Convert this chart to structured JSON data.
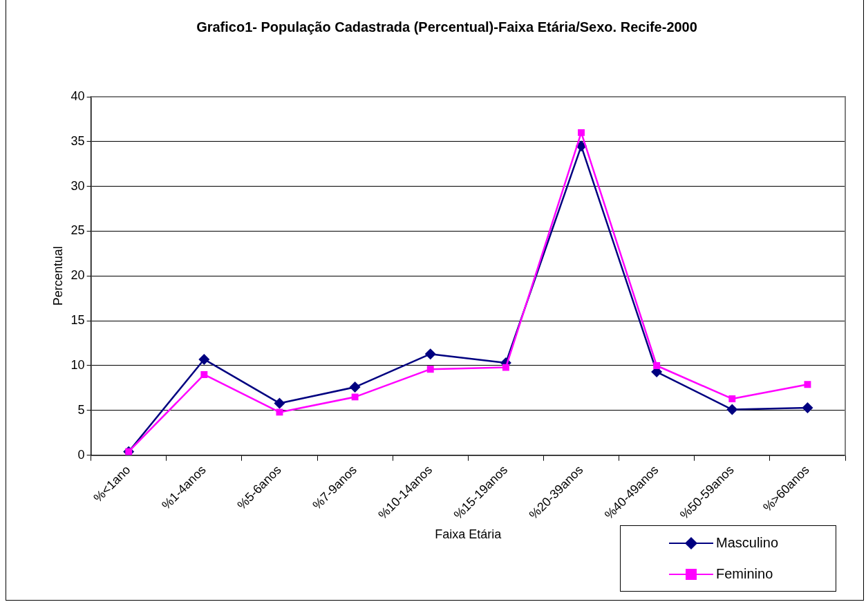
{
  "chart_data": {
    "type": "line",
    "title": "Grafico1- População Cadastrada (Percentual)-Faixa Etária/Sexo. Recife-2000",
    "xlabel": "Faixa Etária",
    "ylabel": "Percentual",
    "categories": [
      "%<1ano",
      "%1-4anos",
      "%5-6anos",
      "%7-9anos",
      "%10-14anos",
      "%15-19anos",
      "%20-39anos",
      "%40-49anos",
      "%50-59anos",
      "%>60anos"
    ],
    "series": [
      {
        "name": "Masculino",
        "color": "#000080",
        "marker": "diamond",
        "values": [
          0.4,
          10.7,
          5.8,
          7.6,
          11.3,
          10.3,
          34.5,
          9.3,
          5.1,
          5.3
        ]
      },
      {
        "name": "Feminino",
        "color": "#ff00ff",
        "marker": "square",
        "values": [
          0.4,
          9.0,
          4.8,
          6.5,
          9.6,
          9.8,
          36.0,
          10.0,
          6.3,
          7.9
        ]
      }
    ],
    "ylim": [
      0,
      40
    ],
    "yticks": [
      0,
      5,
      10,
      15,
      20,
      25,
      30,
      35,
      40
    ],
    "grid": "y",
    "legend": "bottom right",
    "line_style": "solid"
  }
}
